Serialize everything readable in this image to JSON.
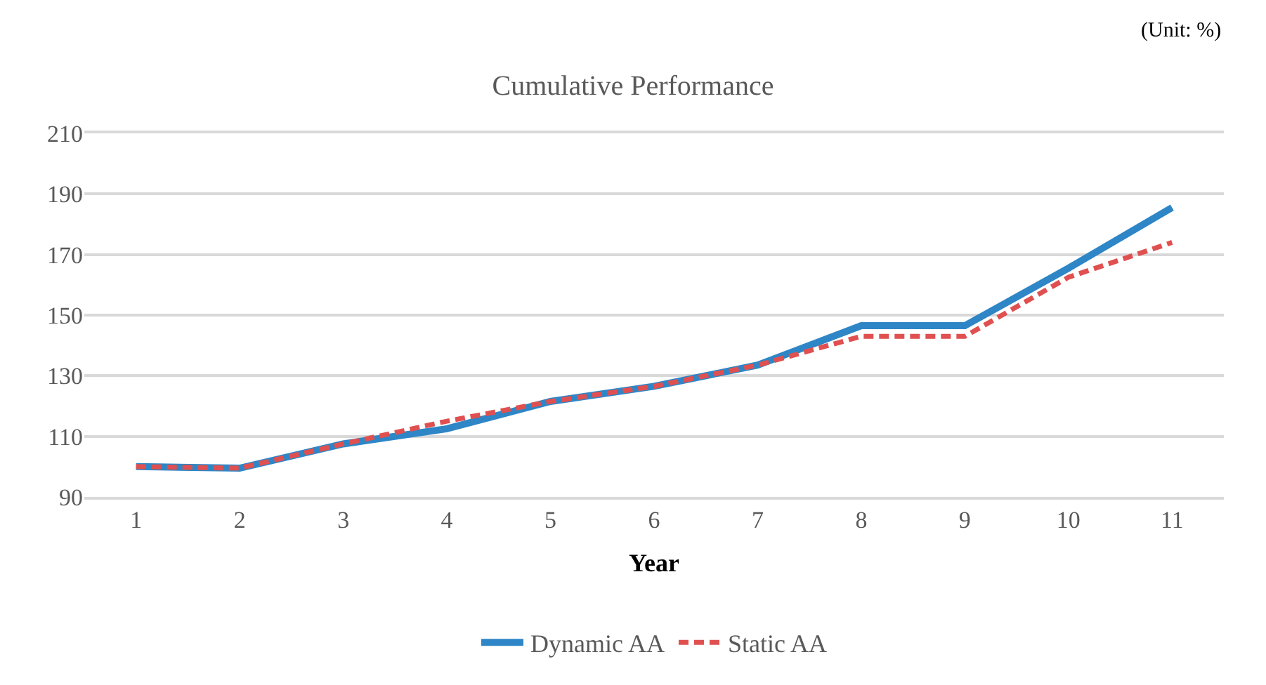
{
  "chart_data": {
    "type": "line",
    "title": "Cumulative Performance",
    "xlabel": "Year",
    "annotations": [
      "(Unit: %)"
    ],
    "categories": [
      "1",
      "2",
      "3",
      "4",
      "5",
      "6",
      "7",
      "8",
      "9",
      "10",
      "11"
    ],
    "series": [
      {
        "name": "Dynamic AA",
        "color": "#2e86c6",
        "line_style": "solid",
        "values": [
          100,
          99.5,
          107.5,
          112.5,
          121.5,
          126.5,
          133.5,
          146.5,
          146.5,
          165.5,
          185.5
        ]
      },
      {
        "name": "Static AA",
        "color": "#e05050",
        "line_style": "dashed",
        "values": [
          100,
          99.5,
          107.5,
          115,
          121.5,
          126.5,
          133.5,
          143,
          143,
          162.5,
          174
        ]
      }
    ],
    "ylim": [
      90,
      210
    ],
    "yticks": [
      90,
      110,
      130,
      150,
      170,
      190,
      210
    ],
    "grid": "y",
    "legend": "bottom",
    "marker": "none"
  }
}
